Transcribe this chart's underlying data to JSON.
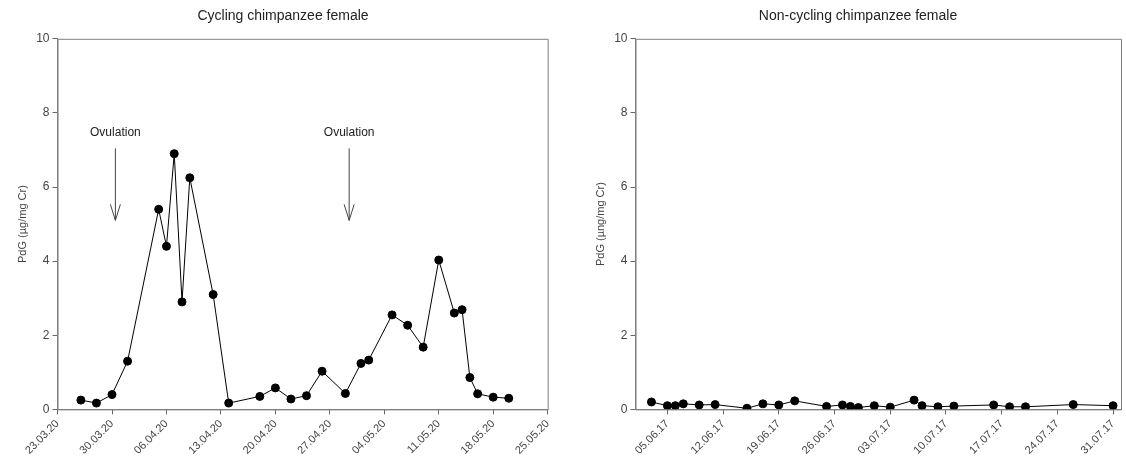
{
  "chart_data": [
    {
      "type": "line",
      "title": "Cycling chimpanzee female",
      "ylabel": "PdG (µg/mg Cr)",
      "marker": "circle",
      "line_style": "solid",
      "grid": false,
      "legend": false,
      "x": [
        "--03-26",
        "--03-28",
        "--03-30",
        "--04-01",
        "--04-05",
        "--04-06",
        "--04-07",
        "--04-08",
        "--04-09",
        "--04-12",
        "--04-14",
        "--04-18",
        "--04-20",
        "--04-22",
        "--04-24",
        "--04-26",
        "--04-29",
        "--05-01",
        "--05-02",
        "--05-05",
        "--05-07",
        "--05-09",
        "--05-11",
        "--05-13",
        "--05-14",
        "--05-15",
        "--05-16",
        "--05-18",
        "--05-20"
      ],
      "series": [
        {
          "color": "#000000",
          "values": [
            0.25,
            0.17,
            0.4,
            1.3,
            5.4,
            4.4,
            6.9,
            2.9,
            6.25,
            3.1,
            0.17,
            0.35,
            0.58,
            0.28,
            0.37,
            1.03,
            0.43,
            1.24,
            1.33,
            2.55,
            2.27,
            1.68,
            4.03,
            2.6,
            2.69,
            0.86,
            0.42,
            0.33,
            0.3
          ]
        }
      ],
      "xlim": [
        "--03-23",
        "--05-25"
      ],
      "xticks": [
        {
          "value": "--03-23",
          "label": "23.03.20"
        },
        {
          "value": "--03-30",
          "label": "30.03.20"
        },
        {
          "value": "--04-06",
          "label": "06.04.20"
        },
        {
          "value": "--04-13",
          "label": "13.04.20"
        },
        {
          "value": "--04-20",
          "label": "20.04.20"
        },
        {
          "value": "--04-27",
          "label": "27.04.20"
        },
        {
          "value": "--05-04",
          "label": "04.05.20"
        },
        {
          "value": "--05-11",
          "label": "11.05.20"
        },
        {
          "value": "--05-18",
          "label": "18.05.20"
        },
        {
          "value": "--05-25",
          "label": "25.05.20"
        }
      ],
      "ylim": [
        0,
        10
      ],
      "yticks": [
        0,
        2,
        4,
        6,
        8,
        10
      ],
      "annotations": [
        "Ovulation",
        "Ovulation"
      ]
    },
    {
      "type": "line",
      "title": "Non-cycling chimpanzee female",
      "ylabel": "PdG (µng/mg Cr)",
      "marker": "circle",
      "line_style": "solid",
      "grid": false,
      "legend": false,
      "x": [
        "--06-03",
        "--06-05",
        "--06-06",
        "--06-07",
        "--06-09",
        "--06-11",
        "--06-15",
        "--06-17",
        "--06-19",
        "--06-21",
        "--06-25",
        "--06-27",
        "--06-28",
        "--06-29",
        "--07-01",
        "--07-03",
        "--07-06",
        "--07-07",
        "--07-09",
        "--07-11",
        "--07-16",
        "--07-18",
        "--07-20",
        "--07-26",
        "--07-31"
      ],
      "series": [
        {
          "color": "#000000",
          "values": [
            0.2,
            0.1,
            0.1,
            0.15,
            0.12,
            0.13,
            0.03,
            0.15,
            0.12,
            0.23,
            0.08,
            0.12,
            0.08,
            0.05,
            0.1,
            0.06,
            0.25,
            0.1,
            0.07,
            0.09,
            0.12,
            0.07,
            0.07,
            0.13,
            0.1
          ]
        }
      ],
      "xlim": [
        "--06-01",
        "--08-01"
      ],
      "xticks": [
        {
          "value": "--06-05",
          "label": "05.06.17"
        },
        {
          "value": "--06-12",
          "label": "12.06.17"
        },
        {
          "value": "--06-19",
          "label": "19.06.17"
        },
        {
          "value": "--06-26",
          "label": "26.06.17"
        },
        {
          "value": "--07-03",
          "label": "03.07.17"
        },
        {
          "value": "--07-10",
          "label": "10.07.17"
        },
        {
          "value": "--07-17",
          "label": "17.07.17"
        },
        {
          "value": "--07-24",
          "label": "24.07.17"
        },
        {
          "value": "--07-31",
          "label": "31.07.17"
        }
      ],
      "ylim": [
        0,
        10
      ],
      "yticks": [
        0,
        2,
        4,
        6,
        8,
        10
      ]
    }
  ]
}
